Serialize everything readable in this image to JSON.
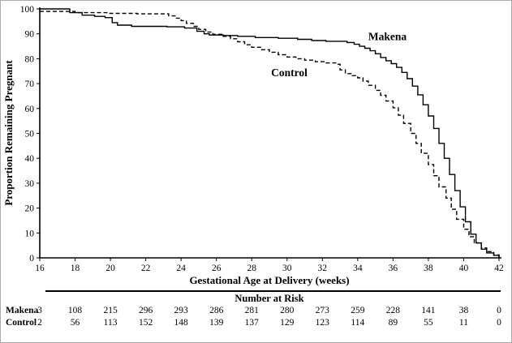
{
  "chart_data": {
    "type": "line",
    "subtype": "kaplan-meier-step",
    "title": "",
    "xlabel": "Gestational Age at Delivery (weeks)",
    "ylabel": "Proportion Remaining Pregnant",
    "xlim": [
      16,
      42
    ],
    "ylim": [
      0,
      100
    ],
    "xticks": [
      16,
      18,
      20,
      22,
      24,
      26,
      28,
      30,
      32,
      34,
      36,
      38,
      40,
      42
    ],
    "yticks": [
      0,
      10,
      20,
      30,
      40,
      50,
      60,
      70,
      80,
      90,
      100
    ],
    "grid": false,
    "axis_color": "#000000",
    "series": [
      {
        "name": "Makena",
        "line_style": "solid",
        "color": "#000000",
        "label_x": 34.6,
        "label_y": 87.5,
        "points": [
          [
            16,
            100
          ],
          [
            17.7,
            98.5
          ],
          [
            18.4,
            97.5
          ],
          [
            19.1,
            97
          ],
          [
            19.7,
            96.5
          ],
          [
            20.1,
            94.5
          ],
          [
            20.4,
            93.5
          ],
          [
            21.2,
            93
          ],
          [
            23.2,
            92.8
          ],
          [
            24.2,
            92.3
          ],
          [
            24.9,
            91
          ],
          [
            25.3,
            90
          ],
          [
            25.6,
            89.5
          ],
          [
            26.4,
            89.3
          ],
          [
            27.2,
            89
          ],
          [
            28.2,
            88.5
          ],
          [
            29.5,
            88.2
          ],
          [
            30.6,
            87.8
          ],
          [
            31.4,
            87.3
          ],
          [
            32.2,
            87
          ],
          [
            33.4,
            86.5
          ],
          [
            33.8,
            85.8
          ],
          [
            34.1,
            85
          ],
          [
            34.4,
            84.2
          ],
          [
            34.7,
            83.2
          ],
          [
            35.0,
            82
          ],
          [
            35.3,
            80.5
          ],
          [
            35.6,
            79.2
          ],
          [
            35.9,
            78
          ],
          [
            36.2,
            76.5
          ],
          [
            36.5,
            74.5
          ],
          [
            36.8,
            72
          ],
          [
            37.1,
            69
          ],
          [
            37.4,
            65.5
          ],
          [
            37.7,
            61.5
          ],
          [
            38.0,
            57
          ],
          [
            38.3,
            52
          ],
          [
            38.6,
            46
          ],
          [
            38.9,
            40
          ],
          [
            39.2,
            33.5
          ],
          [
            39.5,
            27
          ],
          [
            39.8,
            20.5
          ],
          [
            40.1,
            14.5
          ],
          [
            40.4,
            9.5
          ],
          [
            40.7,
            6
          ],
          [
            41.0,
            3.5
          ],
          [
            41.3,
            2
          ],
          [
            41.7,
            1
          ],
          [
            42,
            0
          ]
        ]
      },
      {
        "name": "Control",
        "line_style": "dashed",
        "color": "#000000",
        "label_x": 29.1,
        "label_y": 73,
        "points": [
          [
            16,
            99
          ],
          [
            18.0,
            98.5
          ],
          [
            19.8,
            98.2
          ],
          [
            21.5,
            98
          ],
          [
            23.3,
            97.2
          ],
          [
            23.7,
            96.3
          ],
          [
            24.0,
            95.3
          ],
          [
            24.3,
            94.2
          ],
          [
            24.7,
            93
          ],
          [
            25.0,
            91.8
          ],
          [
            25.4,
            90.7
          ],
          [
            25.8,
            89.8
          ],
          [
            26.3,
            89
          ],
          [
            26.8,
            88
          ],
          [
            27.2,
            86.8
          ],
          [
            27.6,
            85.6
          ],
          [
            28.0,
            84.6
          ],
          [
            28.5,
            83.6
          ],
          [
            29.0,
            82.6
          ],
          [
            29.5,
            81.6
          ],
          [
            30.0,
            80.7
          ],
          [
            30.5,
            80
          ],
          [
            31.0,
            79.4
          ],
          [
            31.6,
            78.8
          ],
          [
            32.2,
            78.3
          ],
          [
            32.8,
            77.8
          ],
          [
            33.0,
            75.5
          ],
          [
            33.3,
            74
          ],
          [
            33.7,
            73.2
          ],
          [
            34.0,
            72.3
          ],
          [
            34.3,
            71
          ],
          [
            34.6,
            69.3
          ],
          [
            35.0,
            67.3
          ],
          [
            35.3,
            65.3
          ],
          [
            35.6,
            63
          ],
          [
            36.0,
            60.3
          ],
          [
            36.3,
            57.3
          ],
          [
            36.6,
            54
          ],
          [
            37.0,
            50
          ],
          [
            37.3,
            46
          ],
          [
            37.6,
            42
          ],
          [
            38.0,
            37.5
          ],
          [
            38.3,
            33
          ],
          [
            38.6,
            28.5
          ],
          [
            39.0,
            24
          ],
          [
            39.3,
            19.5
          ],
          [
            39.6,
            15.5
          ],
          [
            40.0,
            11.5
          ],
          [
            40.3,
            8.5
          ],
          [
            40.6,
            6
          ],
          [
            41.0,
            4
          ],
          [
            41.3,
            2.5
          ],
          [
            41.7,
            1.2
          ],
          [
            42,
            0
          ]
        ]
      }
    ]
  },
  "risk_table": {
    "title": "Number at Risk",
    "weeks": [
      16,
      18,
      20,
      22,
      24,
      26,
      28,
      30,
      32,
      34,
      36,
      38,
      40,
      42
    ],
    "rows": [
      {
        "label": "Makena",
        "values": [
          3,
          108,
          215,
          296,
          293,
          286,
          281,
          280,
          273,
          259,
          228,
          141,
          38,
          0
        ]
      },
      {
        "label": "Control",
        "values": [
          2,
          56,
          113,
          152,
          148,
          139,
          137,
          129,
          123,
          114,
          89,
          55,
          11,
          0
        ]
      }
    ]
  }
}
